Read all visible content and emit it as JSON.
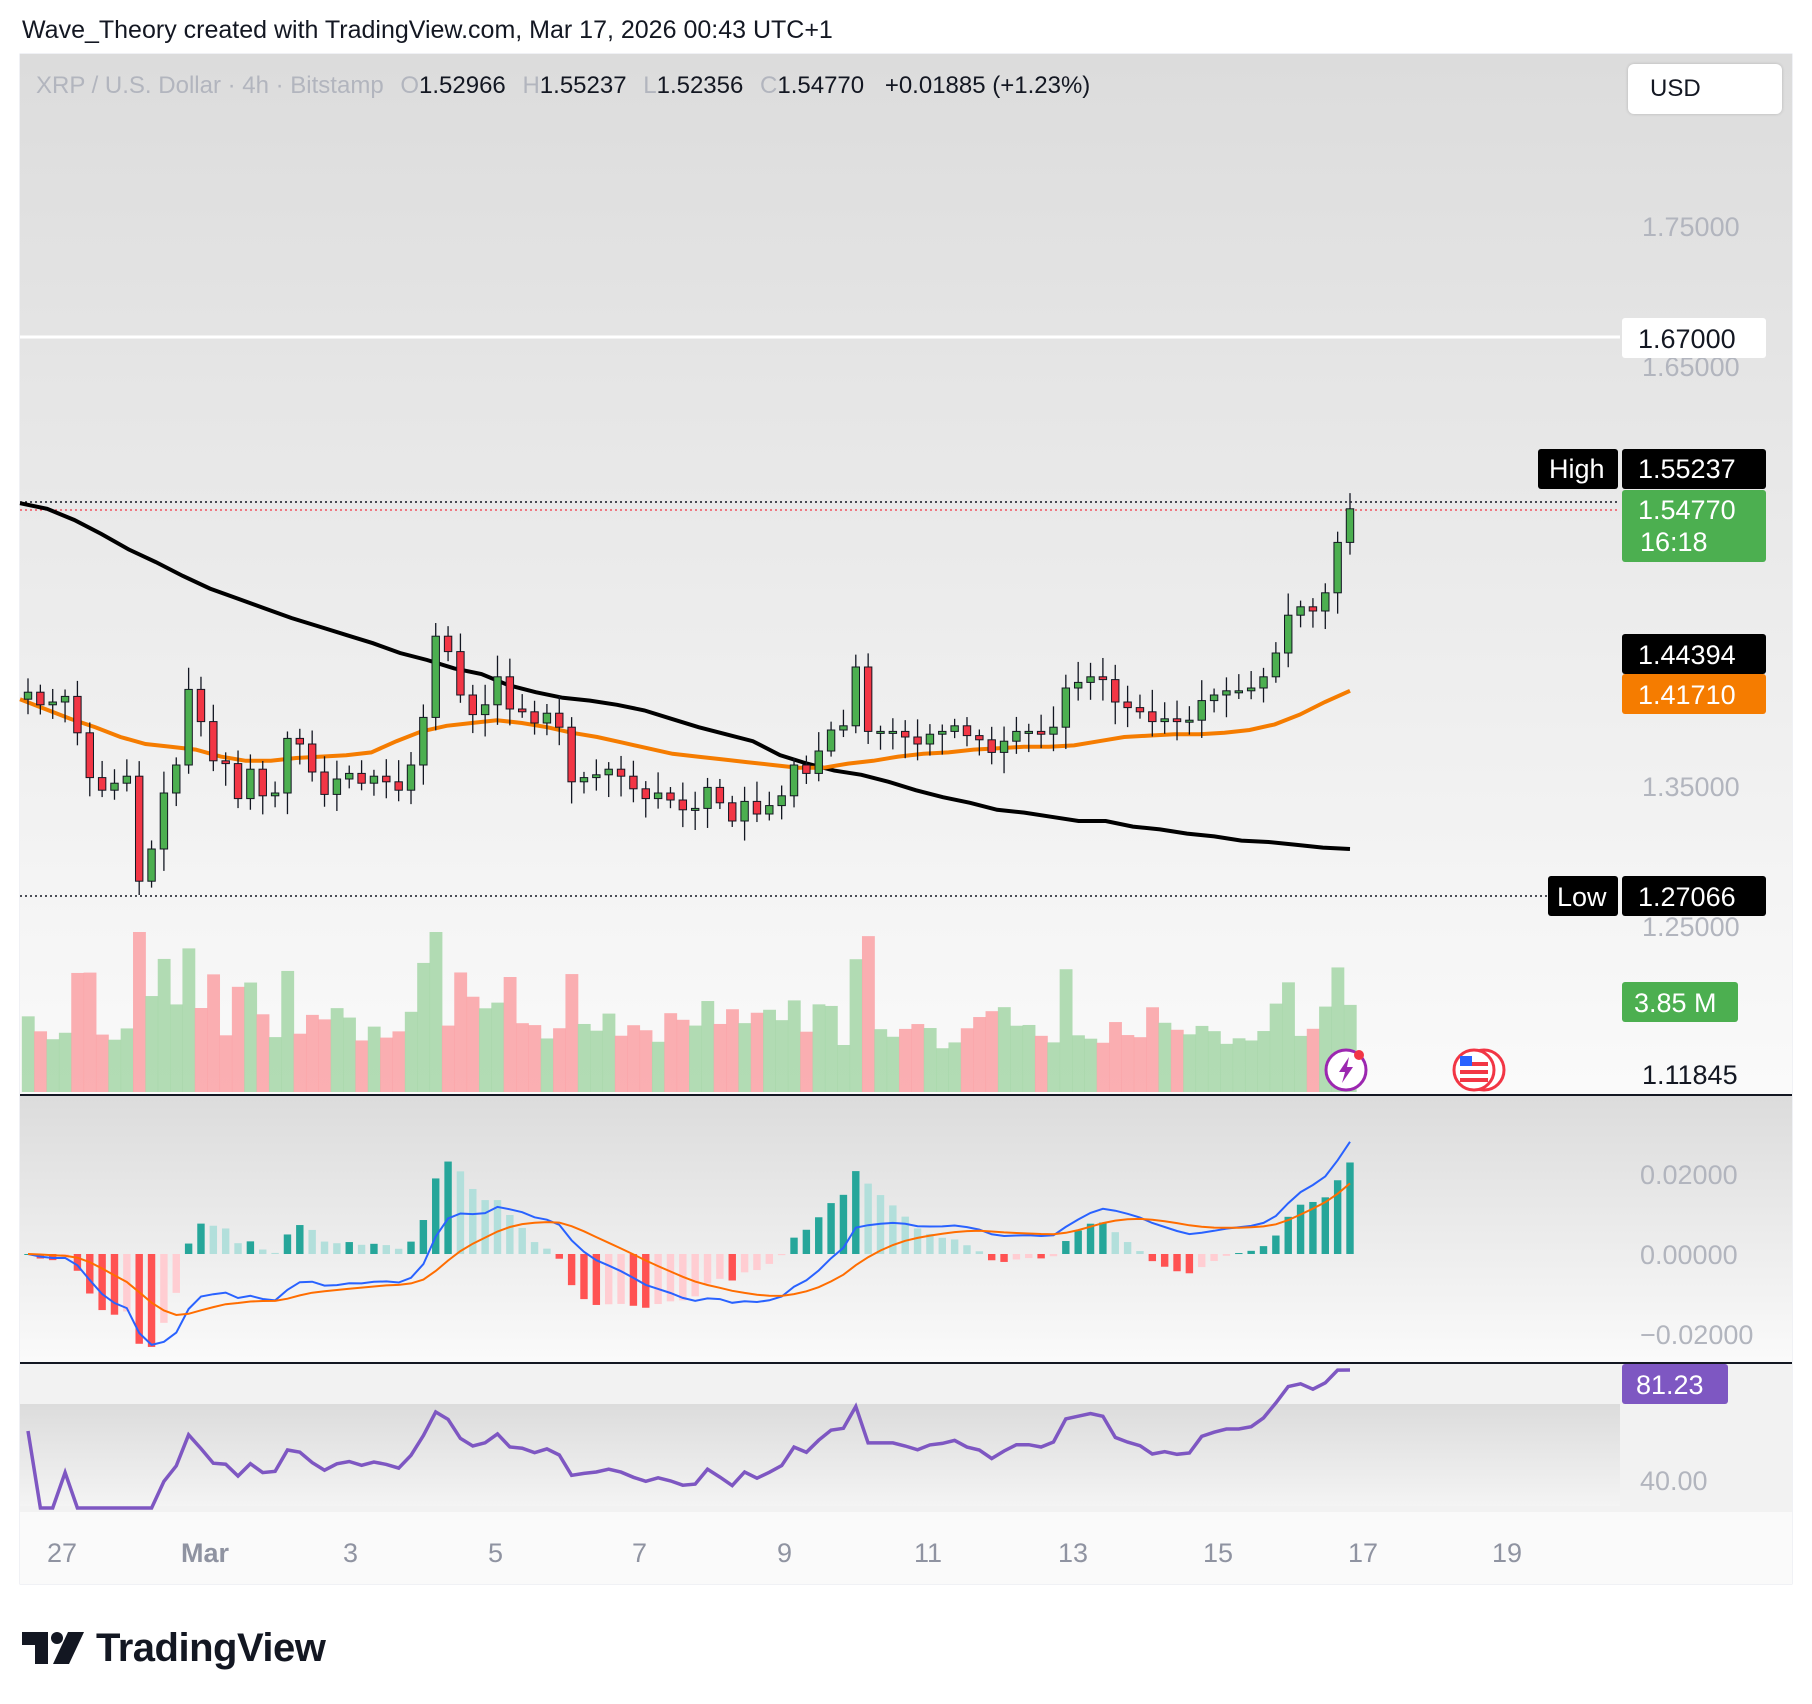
{
  "header": {
    "credit": "Wave_Theory created with TradingView.com, Mar 17, 2026 00:43 UTC+1"
  },
  "legend": {
    "symbol": "XRP / U.S. Dollar · 4h · Bitstamp",
    "open_key": "O",
    "open": "1.52966",
    "high_key": "H",
    "high": "1.55237",
    "low_key": "L",
    "low": "1.52356",
    "close_key": "C",
    "close": "1.54770",
    "change": "+0.01885 (+1.23%)"
  },
  "currency_button": "USD",
  "brand": {
    "name": "TradingView",
    "logo": "tradingview-logo-icon"
  },
  "colors": {
    "up": "#4caf50",
    "down": "#f23645",
    "ma_slow": "#000000",
    "ma_fast": "#f57c00",
    "macd": "#2962ff",
    "signal": "#ff6d00",
    "rsi": "#7e57c2",
    "vol_up": "#a5d6a7",
    "vol_down": "#faa1a4"
  },
  "icons": [
    "flash-news-icon",
    "us-flag-icon"
  ],
  "chart_data": {
    "type": "candlestick",
    "title": "XRP / U.S. Dollar · 4h · Bitstamp",
    "price_axis": {
      "ticks": [
        "1.75000",
        "1.65000",
        "1.35000",
        "1.25000",
        "1.11845"
      ],
      "range": [
        1.118,
        1.85
      ]
    },
    "x_axis": {
      "ticks": [
        "27",
        "Mar",
        "3",
        "5",
        "7",
        "9",
        "11",
        "13",
        "15",
        "17",
        "19"
      ]
    },
    "horizontal_line": {
      "value": 1.67,
      "label": "1.67000"
    },
    "markers": {
      "high": {
        "label": "High",
        "value": "1.55237"
      },
      "low": {
        "label": "Low",
        "value": "1.27066"
      },
      "last": {
        "value": "1.54770",
        "countdown": "16:18"
      },
      "ma_slow": {
        "value": "1.44394"
      },
      "ma_fast": {
        "value": "1.41710"
      },
      "volume": {
        "value": "3.85 M"
      }
    },
    "closes": [
      1.417,
      1.408,
      1.41,
      1.414,
      1.388,
      1.356,
      1.347,
      1.352,
      1.357,
      1.282,
      1.305,
      1.345,
      1.365,
      1.419,
      1.396,
      1.368,
      1.366,
      1.341,
      1.362,
      1.343,
      1.345,
      1.384,
      1.38,
      1.36,
      1.344,
      1.355,
      1.359,
      1.352,
      1.357,
      1.353,
      1.347,
      1.365,
      1.399,
      1.457,
      1.446,
      1.415,
      1.401,
      1.408,
      1.428,
      1.405,
      1.403,
      1.395,
      1.402,
      1.392,
      1.353,
      1.356,
      1.358,
      1.362,
      1.357,
      1.348,
      1.341,
      1.345,
      1.34,
      1.333,
      1.334,
      1.349,
      1.338,
      1.325,
      1.339,
      1.33,
      1.336,
      1.343,
      1.365,
      1.359,
      1.375,
      1.39,
      1.393,
      1.435,
      1.389,
      1.389,
      1.389,
      1.385,
      1.38,
      1.387,
      1.389,
      1.393,
      1.386,
      1.383,
      1.374,
      1.382,
      1.389,
      1.389,
      1.387,
      1.392,
      1.42,
      1.424,
      1.428,
      1.426,
      1.41,
      1.406,
      1.403,
      1.396,
      1.398,
      1.396,
      1.397,
      1.411,
      1.415,
      1.418,
      1.418,
      1.42,
      1.428,
      1.445,
      1.472,
      1.478,
      1.475,
      1.488,
      1.524,
      1.548
    ],
    "ma_slow_values": [
      1.552,
      1.548,
      1.54,
      1.53,
      1.519,
      1.51,
      1.5,
      1.491,
      1.484,
      1.477,
      1.47,
      1.464,
      1.458,
      1.452,
      1.445,
      1.44,
      1.434,
      1.43,
      1.422,
      1.417,
      1.413,
      1.411,
      1.408,
      1.404,
      1.398,
      1.392,
      1.387,
      1.382,
      1.372,
      1.366,
      1.361,
      1.358,
      1.353,
      1.347,
      1.342,
      1.338,
      1.333,
      1.331,
      1.328,
      1.325,
      1.325,
      1.321,
      1.319,
      1.316,
      1.314,
      1.311,
      1.31,
      1.308,
      1.306,
      1.305
    ],
    "ma_fast_values": [
      1.412,
      1.405,
      1.398,
      1.392,
      1.385,
      1.38,
      1.378,
      1.376,
      1.371,
      1.368,
      1.368,
      1.37,
      1.371,
      1.372,
      1.374,
      1.382,
      1.389,
      1.393,
      1.395,
      1.397,
      1.395,
      1.392,
      1.388,
      1.385,
      1.381,
      1.377,
      1.373,
      1.371,
      1.369,
      1.367,
      1.365,
      1.363,
      1.363,
      1.366,
      1.368,
      1.371,
      1.373,
      1.374,
      1.376,
      1.377,
      1.378,
      1.378,
      1.379,
      1.382,
      1.385,
      1.386,
      1.387,
      1.387,
      1.388,
      1.39,
      1.394,
      1.401,
      1.41,
      1.418
    ],
    "macd": {
      "axis_ticks": [
        "0.02000",
        "0.00000",
        "−0.02000"
      ]
    },
    "rsi": {
      "last": "81.23",
      "axis_ticks": [
        "40.00"
      ]
    }
  }
}
